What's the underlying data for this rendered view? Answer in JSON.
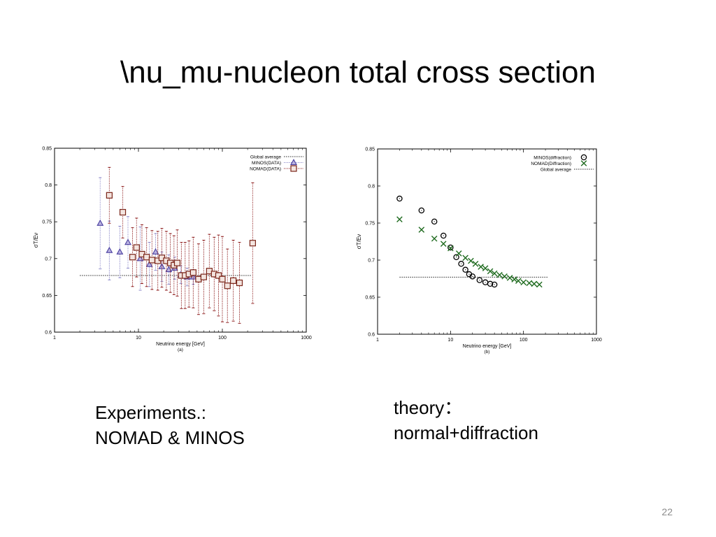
{
  "slide": {
    "title": "\\nu_mu-nucleon  total cross section",
    "caption_left": [
      "Experiments.:",
      "NOMAD & MINOS"
    ],
    "caption_right": [
      "theory：",
      "normal+diffraction"
    ],
    "page_number": "22"
  },
  "chart_data": [
    {
      "type": "scatter",
      "xscale": "log",
      "xlim": [
        1,
        1000
      ],
      "ylim": [
        0.6,
        0.85
      ],
      "xticks": [
        "1",
        "10",
        "100",
        "1000"
      ],
      "yticks": [
        "0.6",
        "0.65",
        "0.7",
        "0.75",
        "0.8",
        "0.85"
      ],
      "xlabel": "Neutrino energy [GeV]",
      "ylabel": "σT/Eν",
      "panel_label": "(a)",
      "legend_position": "top-right",
      "reference_line": {
        "name": "Global average",
        "y": 0.677,
        "x_range": [
          2,
          220
        ],
        "color": "#333333"
      },
      "series": [
        {
          "name": "MINOS(DATA)",
          "marker": "triangle",
          "color": "#4a3fa0",
          "fill": "#b9b2e0",
          "error_color": "#8a86c8",
          "points": [
            {
              "x": 3.5,
              "y": 0.748,
              "err": 0.062
            },
            {
              "x": 4.5,
              "y": 0.711,
              "err": 0.04
            },
            {
              "x": 6,
              "y": 0.709,
              "err": 0.035
            },
            {
              "x": 7.5,
              "y": 0.722,
              "err": 0.035
            },
            {
              "x": 10.5,
              "y": 0.7,
              "err": 0.043
            },
            {
              "x": 13.5,
              "y": 0.692,
              "err": 0.03
            },
            {
              "x": 16,
              "y": 0.709,
              "err": 0.025
            },
            {
              "x": 19,
              "y": 0.689,
              "err": 0.02
            },
            {
              "x": 23,
              "y": 0.685,
              "err": 0.02
            },
            {
              "x": 27,
              "y": 0.687,
              "err": 0.015
            },
            {
              "x": 32,
              "y": 0.678,
              "err": 0.012
            },
            {
              "x": 38,
              "y": 0.675,
              "err": 0.012
            },
            {
              "x": 45,
              "y": 0.675,
              "err": 0.01
            }
          ]
        },
        {
          "name": "NOMAD(DATA)",
          "marker": "square",
          "color": "#7a2418",
          "fill": "#f3e4df",
          "error_color": "#8e1d1d",
          "points": [
            {
              "x": 4.5,
              "y": 0.786,
              "err": 0.038
            },
            {
              "x": 6.5,
              "y": 0.763,
              "err": 0.035
            },
            {
              "x": 8.5,
              "y": 0.702,
              "err": 0.04
            },
            {
              "x": 9.5,
              "y": 0.715,
              "err": 0.04
            },
            {
              "x": 11,
              "y": 0.706,
              "err": 0.04
            },
            {
              "x": 12.5,
              "y": 0.702,
              "err": 0.04
            },
            {
              "x": 14.5,
              "y": 0.698,
              "err": 0.04
            },
            {
              "x": 17,
              "y": 0.697,
              "err": 0.04
            },
            {
              "x": 19,
              "y": 0.701,
              "err": 0.04
            },
            {
              "x": 21.5,
              "y": 0.697,
              "err": 0.04
            },
            {
              "x": 24,
              "y": 0.694,
              "err": 0.04
            },
            {
              "x": 26.5,
              "y": 0.691,
              "err": 0.04
            },
            {
              "x": 29,
              "y": 0.694,
              "err": 0.045
            },
            {
              "x": 32.5,
              "y": 0.677,
              "err": 0.045
            },
            {
              "x": 36,
              "y": 0.677,
              "err": 0.045
            },
            {
              "x": 40,
              "y": 0.679,
              "err": 0.045
            },
            {
              "x": 45,
              "y": 0.681,
              "err": 0.048
            },
            {
              "x": 52,
              "y": 0.672,
              "err": 0.048
            },
            {
              "x": 60,
              "y": 0.675,
              "err": 0.05
            },
            {
              "x": 70,
              "y": 0.683,
              "err": 0.05
            },
            {
              "x": 80,
              "y": 0.679,
              "err": 0.05
            },
            {
              "x": 90,
              "y": 0.677,
              "err": 0.055
            },
            {
              "x": 100,
              "y": 0.672,
              "err": 0.058
            },
            {
              "x": 115,
              "y": 0.663,
              "err": 0.05
            },
            {
              "x": 135,
              "y": 0.67,
              "err": 0.055
            },
            {
              "x": 160,
              "y": 0.667,
              "err": 0.055
            },
            {
              "x": 230,
              "y": 0.721,
              "err": 0.082
            }
          ]
        }
      ]
    },
    {
      "type": "scatter",
      "xscale": "log",
      "xlim": [
        1,
        1000
      ],
      "ylim": [
        0.6,
        0.85
      ],
      "xticks": [
        "1",
        "10",
        "100",
        "1000"
      ],
      "yticks": [
        "0.6",
        "0.65",
        "0.7",
        "0.75",
        "0.8",
        "0.85"
      ],
      "xlabel": "Neutrino energy [GeV]",
      "ylabel": "σT/Eν",
      "panel_label": "(b)",
      "legend_position": "top-right",
      "reference_line": {
        "name": "Global average",
        "y": 0.677,
        "x_range": [
          2,
          220
        ],
        "color": "#333333"
      },
      "series": [
        {
          "name": "MINOS(diffraction)",
          "marker": "circle",
          "color": "#000000",
          "points": [
            {
              "x": 2,
              "y": 0.783
            },
            {
              "x": 4,
              "y": 0.767
            },
            {
              "x": 6,
              "y": 0.752
            },
            {
              "x": 8,
              "y": 0.733
            },
            {
              "x": 10,
              "y": 0.717
            },
            {
              "x": 12,
              "y": 0.704
            },
            {
              "x": 14,
              "y": 0.695
            },
            {
              "x": 16,
              "y": 0.687
            },
            {
              "x": 18,
              "y": 0.681
            },
            {
              "x": 20,
              "y": 0.678
            },
            {
              "x": 25,
              "y": 0.673
            },
            {
              "x": 30,
              "y": 0.67
            },
            {
              "x": 35,
              "y": 0.668
            },
            {
              "x": 40,
              "y": 0.667
            }
          ]
        },
        {
          "name": "NOMAD(Diffraction)",
          "marker": "cross",
          "color": "#1f6b1f",
          "points": [
            {
              "x": 2,
              "y": 0.755
            },
            {
              "x": 4,
              "y": 0.741
            },
            {
              "x": 6,
              "y": 0.729
            },
            {
              "x": 8,
              "y": 0.722
            },
            {
              "x": 10,
              "y": 0.716
            },
            {
              "x": 13,
              "y": 0.709
            },
            {
              "x": 16,
              "y": 0.703
            },
            {
              "x": 19,
              "y": 0.699
            },
            {
              "x": 22,
              "y": 0.695
            },
            {
              "x": 26,
              "y": 0.691
            },
            {
              "x": 30,
              "y": 0.689
            },
            {
              "x": 35,
              "y": 0.685
            },
            {
              "x": 40,
              "y": 0.682
            },
            {
              "x": 47,
              "y": 0.68
            },
            {
              "x": 55,
              "y": 0.678
            },
            {
              "x": 65,
              "y": 0.676
            },
            {
              "x": 75,
              "y": 0.674
            },
            {
              "x": 85,
              "y": 0.672
            },
            {
              "x": 100,
              "y": 0.67
            },
            {
              "x": 120,
              "y": 0.669
            },
            {
              "x": 140,
              "y": 0.668
            },
            {
              "x": 165,
              "y": 0.667
            }
          ]
        }
      ]
    }
  ]
}
